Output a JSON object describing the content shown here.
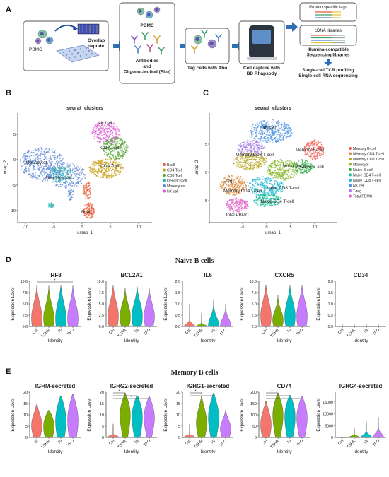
{
  "colors": {
    "arrow": "#2f6fb5",
    "ctrl": "#f4756b",
    "tshr": "#7cae00",
    "tg": "#00bfc4",
    "tpo": "#c77cff"
  },
  "panel_a": {
    "letter": "A",
    "step1": {
      "pbmc": "PBMC",
      "overlap": "Overlap peptide"
    },
    "step2": {
      "pbmc": "PBMC",
      "label": "Antibodies and Oligonucleotiod (Abo)"
    },
    "step3": {
      "label": "Tag cells with Abo"
    },
    "step4": {
      "label": "Cell capture with BD Rhapsody"
    },
    "step5": {
      "box1": "Protein specific tags",
      "box2": "cDNA libraries",
      "seq": "Illumina-compatible Sequencing libraries",
      "out1": "Single-cell TCR profiling",
      "out2": "Single-cell RNA sequencing"
    }
  },
  "panel_b": {
    "letter": "B",
    "title": "seurat_clusters",
    "xlabel": "umap_1",
    "ylabel": "umap_2",
    "xticks": [
      "-10",
      "-5",
      "0",
      "5",
      "10"
    ],
    "yticks": [
      "5",
      "0",
      "-5",
      "-10"
    ],
    "labels": [
      "NK cell",
      "CD8 Tcell",
      "CD4 Tcell",
      "Monocytes",
      "Dendric Cell",
      "Bcell"
    ],
    "legend": [
      {
        "name": "Bcell",
        "color": "#e8613c"
      },
      {
        "name": "CD4 Tcell",
        "color": "#c9a21c"
      },
      {
        "name": "CD8 Tcell",
        "color": "#5aa83a"
      },
      {
        "name": "Dendric Cell",
        "color": "#2bb5b0"
      },
      {
        "name": "Monocytes",
        "color": "#5b86d6"
      },
      {
        "name": "NK cell",
        "color": "#de5ad6"
      }
    ]
  },
  "panel_c": {
    "letter": "C",
    "title": "seurat_clusters",
    "xlabel": "umap_1",
    "ylabel": "umap_2",
    "xticks": [
      "-5",
      "0",
      "5",
      "10"
    ],
    "yticks": [
      "5",
      "0",
      "-5"
    ],
    "labels": [
      "NK cell",
      "Memory B-cell",
      "Memory CD8 T-cell",
      "Monocyte",
      "Naive B-cell",
      "T-reg",
      "Naive CD8 T-cell",
      "Memory CD4 T-cell",
      "Naive CD4 T-cell",
      "Total PBMC"
    ],
    "legend": [
      {
        "name": "Memory B-cell",
        "color": "#f0645a"
      },
      {
        "name": "Memory CD4 T-cell",
        "color": "#d98a3a"
      },
      {
        "name": "Memory CD8 T-cell",
        "color": "#b7a51e"
      },
      {
        "name": "Monocyte",
        "color": "#86b82a"
      },
      {
        "name": "Naive B-cell",
        "color": "#2fb24a"
      },
      {
        "name": "Naive CD4 T-cell",
        "color": "#1fbf9a"
      },
      {
        "name": "Naive CD8 T-cell",
        "color": "#22b8d6"
      },
      {
        "name": "NK cell",
        "color": "#4a90e2"
      },
      {
        "name": "T-reg",
        "color": "#a77ce6"
      },
      {
        "name": "Total PBMC",
        "color": "#e665c8"
      }
    ]
  },
  "panel_d": {
    "letter": "D",
    "heading": "Naive B cells",
    "ylabel": "Expression Level",
    "xlabel": "Identity",
    "groups": [
      "Ctrl",
      "TSHR",
      "Tg",
      "TPO"
    ],
    "plots": [
      {
        "gene": "IRF8",
        "yticks": [
          "0.0",
          "2.5",
          "5.0",
          "7.5",
          "10.0"
        ],
        "ymax": 10,
        "sig": [
          "*"
        ]
      },
      {
        "gene": "BCL2A1",
        "yticks": [
          "0.0",
          "2.5",
          "5.0",
          "7.5",
          "10.0"
        ],
        "ymax": 10,
        "sig": []
      },
      {
        "gene": "IL6",
        "yticks": [
          "0.0",
          "0.5",
          "1.0",
          "1.5",
          "2.0"
        ],
        "ymax": 2,
        "sig": []
      },
      {
        "gene": "CXCR5",
        "yticks": [
          "0.0",
          "2.5",
          "5.0",
          "7.5",
          "10.0"
        ],
        "ymax": 10,
        "sig": []
      },
      {
        "gene": "CD34",
        "yticks": [
          "0.0",
          "0.5",
          "1.0",
          "1.5",
          "2.0"
        ],
        "ymax": 2,
        "sig": []
      }
    ]
  },
  "panel_e": {
    "letter": "E",
    "heading": "Memory B cells",
    "ylabel": "Expression Level",
    "xlabel": "Identity",
    "groups": [
      "Ctrl",
      "TSHR",
      "Tg",
      "TPO"
    ],
    "plots": [
      {
        "gene": "IGHM-secreted",
        "yticks": [
          "0",
          "5",
          "10",
          "15",
          "20"
        ],
        "ymax": 20,
        "sig": []
      },
      {
        "gene": "IGHG2-secreted",
        "yticks": [
          "0",
          "5",
          "10",
          "15",
          "20"
        ],
        "ymax": 20,
        "sig": [
          "*",
          "*",
          "*"
        ]
      },
      {
        "gene": "IGHG1-secreted",
        "yticks": [
          "0",
          "5",
          "10",
          "15",
          "20"
        ],
        "ymax": 20,
        "sig": [
          "*",
          "*"
        ]
      },
      {
        "gene": "CD74",
        "yticks": [
          "0",
          "50",
          "100",
          "150",
          "200"
        ],
        "ymax": 200,
        "sig": [
          "*",
          "*",
          "*"
        ]
      },
      {
        "gene": "IGHG4-secreted",
        "yticks": [
          "0",
          "5000",
          "10000",
          "15000"
        ],
        "ymax": 15000,
        "sig": []
      }
    ]
  }
}
